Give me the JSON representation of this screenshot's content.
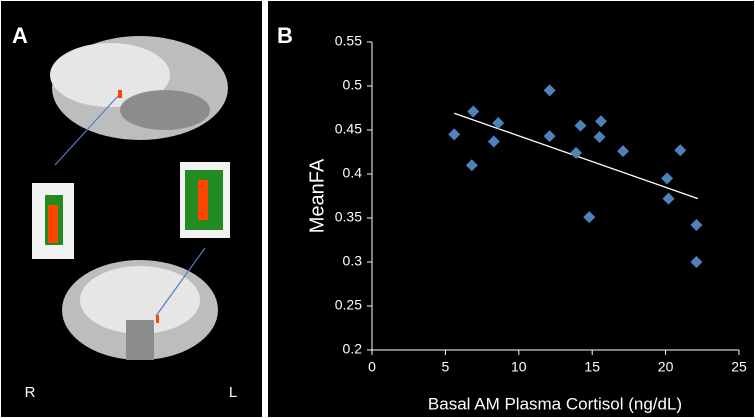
{
  "panels": {
    "a": "A",
    "b": "B"
  },
  "orientation": {
    "left": "R",
    "right": "L"
  },
  "chart_data": {
    "type": "scatter",
    "x_label": "Basal AM Plasma Cortisol (ng/dL)",
    "y_label": "MeanFA",
    "color": "#4f81bd",
    "x": [
      5.6,
      6.9,
      6.8,
      8.3,
      8.6,
      12.1,
      12.1,
      14.2,
      13.9,
      14.8,
      15.6,
      15.5,
      17.1,
      21.0,
      20.1,
      20.2,
      22.1,
      22.1
    ],
    "values": [
      0.445,
      0.471,
      0.41,
      0.437,
      0.458,
      0.495,
      0.443,
      0.455,
      0.424,
      0.351,
      0.46,
      0.442,
      0.426,
      0.427,
      0.395,
      0.372,
      0.342,
      0.3
    ],
    "trendline": {
      "x": [
        5.6,
        22.2
      ],
      "y": [
        0.469,
        0.372
      ]
    },
    "xlim": [
      0,
      25
    ],
    "xticks": [
      0,
      5,
      10,
      15,
      20,
      25
    ],
    "ylim": [
      0.2,
      0.55
    ],
    "yticks": [
      0.2,
      0.25,
      0.3,
      0.35,
      0.4,
      0.45,
      0.5,
      0.55
    ]
  }
}
